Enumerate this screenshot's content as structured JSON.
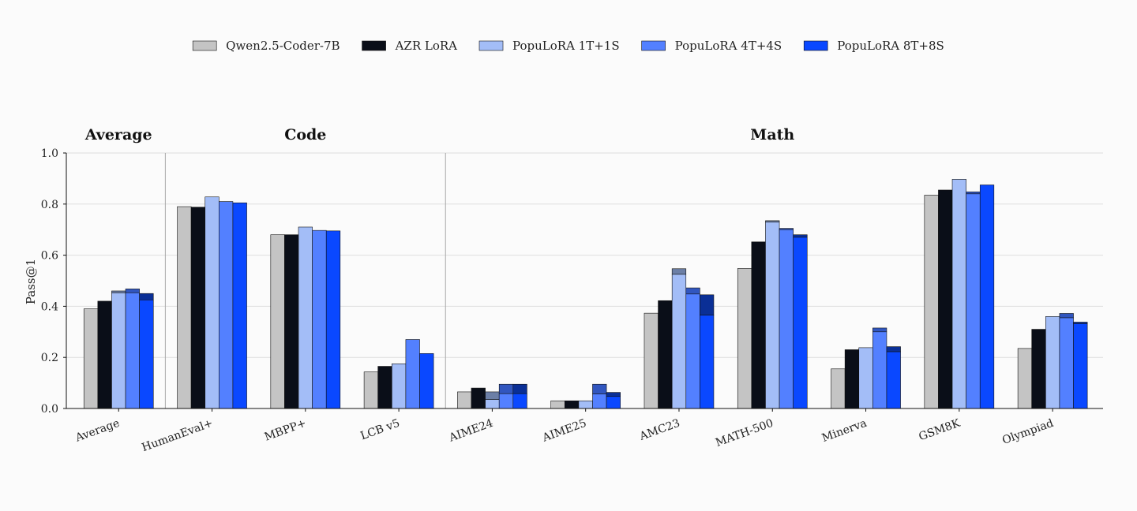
{
  "chart_data": {
    "type": "bar",
    "ylabel": "Pass@1",
    "ylim": [
      0,
      1.0
    ],
    "yticks": [
      "0.0",
      "0.2",
      "0.4",
      "0.6",
      "0.8",
      "1.0"
    ],
    "ytick_values": [
      0,
      0.2,
      0.4,
      0.6,
      0.8,
      1.0
    ],
    "grid": "horizontal",
    "legend_position": "top-center",
    "categories": [
      "Average",
      "HumanEval+",
      "MBPP+",
      "LCB v5",
      "AIME24",
      "AIME25",
      "AMC23",
      "MATH-500",
      "Minerva",
      "GSM8K",
      "Olympiad"
    ],
    "groups": [
      {
        "label": "Average",
        "start": 0,
        "end": 0
      },
      {
        "label": "Code",
        "start": 1,
        "end": 3
      },
      {
        "label": "Math",
        "start": 4,
        "end": 10
      }
    ],
    "series": [
      {
        "name": "Qwen2.5-Coder-7B",
        "color": "#c4c4c4",
        "values": [
          0.39,
          0.79,
          0.68,
          0.143,
          0.065,
          0.03,
          0.373,
          0.548,
          0.155,
          0.835,
          0.235
        ],
        "upper": [
          0.39,
          0.79,
          0.68,
          0.143,
          0.065,
          0.03,
          0.373,
          0.548,
          0.155,
          0.835,
          0.235
        ]
      },
      {
        "name": "AZR LoRA",
        "color": "#0a0e18",
        "values": [
          0.42,
          0.788,
          0.68,
          0.165,
          0.08,
          0.03,
          0.422,
          0.652,
          0.23,
          0.855,
          0.31
        ],
        "upper": [
          0.42,
          0.788,
          0.68,
          0.165,
          0.08,
          0.03,
          0.422,
          0.652,
          0.23,
          0.855,
          0.31
        ]
      },
      {
        "name": "PopuLoRA 1T+1S",
        "color": "#a3bdf7",
        "upper_color": "#6c7fa6",
        "values": [
          0.453,
          0.828,
          0.71,
          0.175,
          0.035,
          0.03,
          0.525,
          0.73,
          0.238,
          0.897,
          0.36
        ],
        "upper": [
          0.46,
          0.828,
          0.71,
          0.175,
          0.065,
          0.03,
          0.547,
          0.735,
          0.238,
          0.897,
          0.36
        ]
      },
      {
        "name": "PopuLoRA 4T+4S",
        "color": "#5380ff",
        "upper_color": "#3156bf",
        "values": [
          0.453,
          0.81,
          0.697,
          0.27,
          0.058,
          0.057,
          0.448,
          0.7,
          0.3,
          0.84,
          0.355
        ],
        "upper": [
          0.468,
          0.81,
          0.697,
          0.27,
          0.095,
          0.095,
          0.472,
          0.705,
          0.315,
          0.848,
          0.372
        ]
      },
      {
        "name": "PopuLoRA 8T+8S",
        "color": "#0a48ff",
        "upper_color": "#0a2f96",
        "values": [
          0.425,
          0.805,
          0.695,
          0.215,
          0.058,
          0.047,
          0.365,
          0.67,
          0.222,
          0.875,
          0.332
        ],
        "upper": [
          0.45,
          0.805,
          0.695,
          0.215,
          0.095,
          0.063,
          0.445,
          0.68,
          0.242,
          0.875,
          0.338
        ]
      }
    ]
  }
}
